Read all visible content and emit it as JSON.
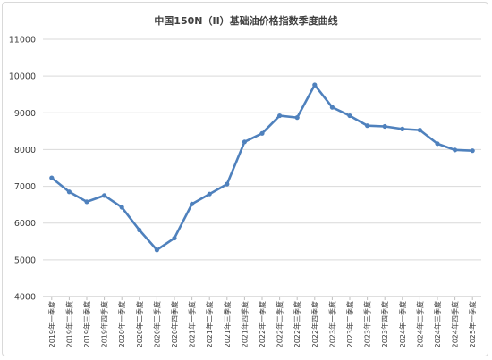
{
  "chart_data": {
    "type": "line",
    "title": "中国150N（II）基础油价格指数季度曲线",
    "xlabel": "",
    "ylabel": "",
    "ylim": [
      4000,
      11000
    ],
    "yticks": [
      4000,
      5000,
      6000,
      7000,
      8000,
      9000,
      10000,
      11000
    ],
    "grid": true,
    "legend": "none",
    "line_color": "#4f81bd",
    "categories": [
      "2019年一季度",
      "2019年二季度",
      "2019年三季度",
      "2019年四季度",
      "2020年一季度",
      "2020年二季度",
      "2020年三季度",
      "2020年四季度",
      "2021年一季度",
      "2021年二季度",
      "2021年三季度",
      "2021年四季度",
      "2022年一季度",
      "2022年二季度",
      "2022年三季度",
      "2022年四季度",
      "2023年一季度",
      "2023年二季度",
      "2023年三季度",
      "2023年四季度",
      "2024年一季度",
      "2024年二季度",
      "2024年三季度",
      "2024年四季度",
      "2025年一季度"
    ],
    "series": [
      {
        "values": [
          7230,
          6850,
          6580,
          6750,
          6430,
          5810,
          5270,
          5590,
          6520,
          6790,
          7060,
          8210,
          8440,
          8920,
          8870,
          9760,
          9150,
          8920,
          8650,
          8630,
          8560,
          8530,
          8160,
          7990,
          7970
        ]
      }
    ]
  }
}
